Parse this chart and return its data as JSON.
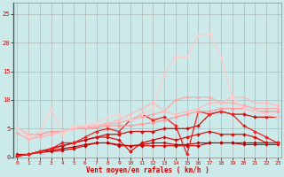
{
  "xlabel": "Vent moyen/en rafales ( km/h )",
  "background_color": "#cceaea",
  "x": [
    0,
    1,
    2,
    3,
    4,
    5,
    6,
    7,
    8,
    9,
    10,
    11,
    12,
    13,
    14,
    15,
    16,
    17,
    18,
    19,
    20,
    21,
    22,
    23
  ],
  "lines": [
    {
      "y": [
        0.5,
        0.5,
        0.8,
        1.0,
        1.2,
        1.5,
        2.0,
        2.5,
        2.5,
        2.0,
        2.0,
        2.0,
        2.0,
        2.0,
        2.0,
        2.0,
        2.0,
        2.5,
        2.5,
        2.5,
        2.2,
        2.2,
        2.2,
        2.2
      ],
      "color": "#cc0000",
      "lw": 0.8,
      "marker": "D",
      "ms": 1.8
    },
    {
      "y": [
        0.3,
        0.5,
        1.0,
        1.2,
        1.5,
        1.8,
        2.2,
        2.5,
        2.5,
        2.2,
        2.0,
        2.2,
        2.5,
        2.5,
        2.2,
        2.2,
        2.5,
        2.5,
        2.5,
        2.5,
        2.5,
        2.5,
        2.5,
        2.5
      ],
      "color": "#bb0000",
      "lw": 0.8,
      "marker": "D",
      "ms": 1.8
    },
    {
      "y": [
        0.2,
        0.5,
        1.0,
        1.5,
        2.0,
        2.5,
        3.0,
        3.5,
        3.5,
        3.0,
        1.0,
        2.5,
        3.0,
        3.5,
        3.0,
        3.5,
        4.0,
        4.5,
        4.0,
        4.0,
        4.0,
        3.5,
        2.5,
        2.5
      ],
      "color": "#dd1111",
      "lw": 0.9,
      "marker": "D",
      "ms": 2.0
    },
    {
      "y": [
        0.2,
        0.5,
        1.0,
        1.5,
        2.0,
        2.5,
        3.0,
        3.5,
        4.0,
        4.0,
        4.5,
        4.5,
        4.5,
        5.0,
        5.0,
        5.0,
        5.5,
        7.5,
        8.0,
        7.5,
        7.5,
        7.0,
        7.0,
        7.0
      ],
      "color": "#cc1111",
      "lw": 0.9,
      "marker": "D",
      "ms": 2.0
    },
    {
      "y": [
        0.2,
        0.5,
        1.0,
        1.5,
        2.5,
        2.5,
        3.5,
        4.5,
        5.0,
        4.5,
        6.5,
        7.5,
        6.5,
        7.0,
        5.5,
        0.5,
        8.0,
        7.5,
        8.0,
        7.5,
        5.5,
        4.5,
        3.5,
        2.5
      ],
      "color": "#ee2222",
      "lw": 0.9,
      "marker": "D",
      "ms": 2.0
    },
    {
      "y": [
        5.2,
        4.0,
        4.0,
        4.5,
        4.5,
        5.0,
        5.0,
        5.2,
        5.5,
        5.5,
        5.5,
        5.8,
        6.0,
        6.5,
        7.0,
        7.5,
        8.0,
        8.0,
        8.5,
        8.5,
        8.5,
        8.0,
        8.0,
        8.0
      ],
      "color": "#ff9999",
      "lw": 0.9,
      "marker": "D",
      "ms": 2.0
    },
    {
      "y": [
        4.2,
        3.2,
        3.5,
        4.0,
        4.5,
        5.0,
        5.2,
        5.5,
        5.8,
        6.0,
        6.5,
        7.0,
        7.5,
        8.0,
        10.0,
        10.5,
        10.5,
        10.5,
        9.5,
        9.5,
        9.0,
        8.5,
        8.5,
        8.5
      ],
      "color": "#ffaaaa",
      "lw": 0.9,
      "marker": "D",
      "ms": 2.0
    },
    {
      "y": [
        5.2,
        4.0,
        3.5,
        4.0,
        4.5,
        5.0,
        5.5,
        5.5,
        6.0,
        6.5,
        7.5,
        8.5,
        9.5,
        8.0,
        7.5,
        8.0,
        8.5,
        9.5,
        9.5,
        10.5,
        10.5,
        9.5,
        9.5,
        9.0
      ],
      "color": "#ffbbbb",
      "lw": 0.9,
      "marker": "D",
      "ms": 2.0
    },
    {
      "y": [
        5.2,
        3.5,
        4.5,
        8.5,
        4.0,
        5.5,
        5.5,
        6.0,
        7.0,
        7.5,
        6.5,
        7.5,
        8.5,
        14.5,
        17.5,
        17.5,
        21.2,
        21.5,
        17.5,
        10.5,
        8.5,
        8.0,
        7.5,
        7.0
      ],
      "color": "#ffcccc",
      "lw": 0.9,
      "marker": "D",
      "ms": 2.0
    }
  ],
  "ylim": [
    0,
    27
  ],
  "xlim": [
    -0.3,
    23.3
  ],
  "yticks": [
    0,
    5,
    10,
    15,
    20,
    25
  ],
  "xticks": [
    0,
    1,
    2,
    3,
    4,
    5,
    6,
    7,
    8,
    9,
    10,
    11,
    12,
    13,
    14,
    15,
    16,
    17,
    18,
    19,
    20,
    21,
    22,
    23
  ]
}
